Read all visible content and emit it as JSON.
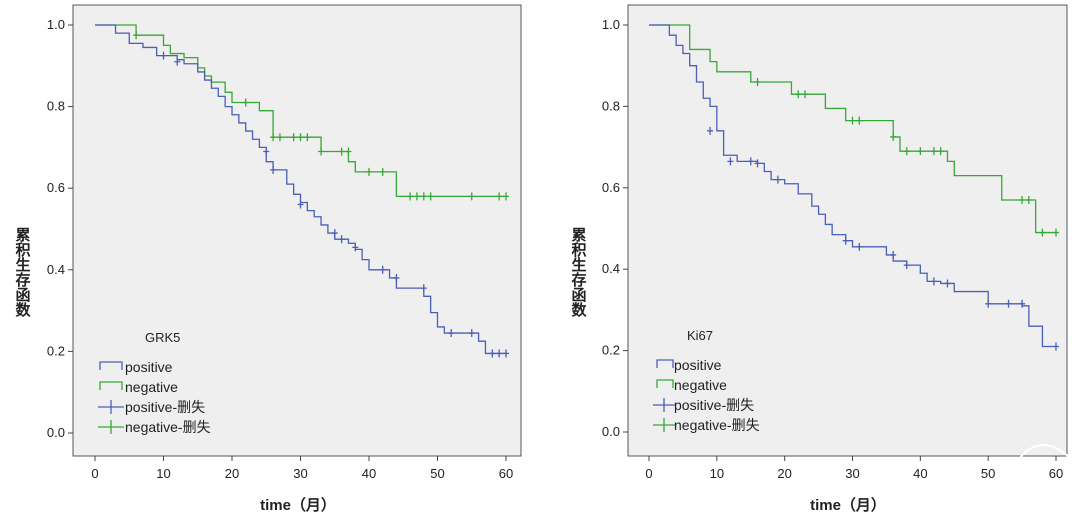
{
  "chart_data": [
    {
      "type": "line",
      "subtype": "kaplan-meier",
      "title": "",
      "xlabel": "time（月）",
      "ylabel": "累积生存函数",
      "xlim": [
        0,
        60
      ],
      "ylim": [
        0,
        1.0
      ],
      "xticks": [
        "0",
        "10",
        "20",
        "30",
        "40",
        "50",
        "60"
      ],
      "yticks": [
        "0.0",
        "0.2",
        "0.4",
        "0.6",
        "0.8",
        "1.0"
      ],
      "grid": false,
      "legend": {
        "title": "GRK5",
        "placement": "bottom-left",
        "entries": [
          "positive",
          "negative",
          "positive-删失",
          "negative-删失"
        ]
      },
      "series": [
        {
          "name": "positive",
          "color": "#4a5fb8",
          "steps": [
            [
              0,
              1.0
            ],
            [
              3,
              0.98
            ],
            [
              5,
              0.955
            ],
            [
              7,
              0.945
            ],
            [
              9,
              0.925
            ],
            [
              12,
              0.915
            ],
            [
              13,
              0.905
            ],
            [
              15,
              0.885
            ],
            [
              16,
              0.865
            ],
            [
              17,
              0.845
            ],
            [
              18,
              0.825
            ],
            [
              19,
              0.8
            ],
            [
              20,
              0.78
            ],
            [
              21,
              0.76
            ],
            [
              22,
              0.74
            ],
            [
              23,
              0.72
            ],
            [
              24,
              0.7
            ],
            [
              25,
              0.665
            ],
            [
              26,
              0.645
            ],
            [
              28,
              0.61
            ],
            [
              29,
              0.585
            ],
            [
              30,
              0.565
            ],
            [
              31,
              0.545
            ],
            [
              32,
              0.53
            ],
            [
              33,
              0.51
            ],
            [
              34,
              0.49
            ],
            [
              35,
              0.475
            ],
            [
              37,
              0.465
            ],
            [
              38,
              0.45
            ],
            [
              39,
              0.425
            ],
            [
              40,
              0.4
            ],
            [
              43,
              0.38
            ],
            [
              44,
              0.355
            ],
            [
              48,
              0.335
            ],
            [
              49,
              0.295
            ],
            [
              50,
              0.26
            ],
            [
              51,
              0.245
            ],
            [
              56,
              0.225
            ],
            [
              57,
              0.195
            ],
            [
              60,
              0.195
            ]
          ],
          "censored": [
            [
              10,
              0.925
            ],
            [
              12,
              0.91
            ],
            [
              25,
              0.69
            ],
            [
              26,
              0.645
            ],
            [
              30,
              0.56
            ],
            [
              35,
              0.49
            ],
            [
              36,
              0.475
            ],
            [
              38,
              0.455
            ],
            [
              42,
              0.4
            ],
            [
              44,
              0.38
            ],
            [
              48,
              0.355
            ],
            [
              52,
              0.245
            ],
            [
              55,
              0.245
            ],
            [
              58,
              0.195
            ],
            [
              59,
              0.195
            ],
            [
              60,
              0.195
            ]
          ]
        },
        {
          "name": "negative",
          "color": "#36a836",
          "steps": [
            [
              0,
              1.0
            ],
            [
              6,
              0.975
            ],
            [
              10,
              0.95
            ],
            [
              11,
              0.93
            ],
            [
              13,
              0.92
            ],
            [
              15,
              0.895
            ],
            [
              16,
              0.875
            ],
            [
              17,
              0.86
            ],
            [
              19,
              0.835
            ],
            [
              20,
              0.81
            ],
            [
              24,
              0.79
            ],
            [
              26,
              0.725
            ],
            [
              33,
              0.69
            ],
            [
              37,
              0.665
            ],
            [
              38,
              0.64
            ],
            [
              44,
              0.58
            ],
            [
              60,
              0.58
            ]
          ],
          "censored": [
            [
              6,
              0.975
            ],
            [
              22,
              0.81
            ],
            [
              26,
              0.725
            ],
            [
              27,
              0.725
            ],
            [
              29,
              0.725
            ],
            [
              30,
              0.725
            ],
            [
              31,
              0.725
            ],
            [
              33,
              0.69
            ],
            [
              36,
              0.69
            ],
            [
              37,
              0.69
            ],
            [
              40,
              0.64
            ],
            [
              42,
              0.64
            ],
            [
              46,
              0.58
            ],
            [
              47,
              0.58
            ],
            [
              48,
              0.58
            ],
            [
              49,
              0.58
            ],
            [
              55,
              0.58
            ],
            [
              59,
              0.58
            ],
            [
              60,
              0.58
            ]
          ]
        }
      ]
    },
    {
      "type": "line",
      "subtype": "kaplan-meier",
      "title": "",
      "xlabel": "time（月）",
      "ylabel": "累积生存函数",
      "xlim": [
        0,
        60
      ],
      "ylim": [
        0,
        1.0
      ],
      "xticks": [
        "0",
        "10",
        "20",
        "30",
        "40",
        "50",
        "60"
      ],
      "yticks": [
        "0.0",
        "0.2",
        "0.4",
        "0.6",
        "0.8",
        "1.0"
      ],
      "grid": false,
      "legend": {
        "title": "Ki67",
        "placement": "bottom-left",
        "entries": [
          "positive",
          "negative",
          "positive-删失",
          "negative-删失"
        ]
      },
      "series": [
        {
          "name": "positive",
          "color": "#4a5fb8",
          "steps": [
            [
              0,
              1.0
            ],
            [
              3,
              0.975
            ],
            [
              4,
              0.95
            ],
            [
              5,
              0.93
            ],
            [
              6,
              0.9
            ],
            [
              7,
              0.86
            ],
            [
              8,
              0.82
            ],
            [
              9,
              0.8
            ],
            [
              10,
              0.74
            ],
            [
              11,
              0.68
            ],
            [
              13,
              0.665
            ],
            [
              16,
              0.66
            ],
            [
              17,
              0.64
            ],
            [
              18,
              0.62
            ],
            [
              20,
              0.61
            ],
            [
              22,
              0.585
            ],
            [
              24,
              0.555
            ],
            [
              25,
              0.535
            ],
            [
              26,
              0.51
            ],
            [
              27,
              0.485
            ],
            [
              29,
              0.47
            ],
            [
              30,
              0.455
            ],
            [
              35,
              0.435
            ],
            [
              36,
              0.42
            ],
            [
              38,
              0.41
            ],
            [
              40,
              0.39
            ],
            [
              41,
              0.37
            ],
            [
              43,
              0.365
            ],
            [
              45,
              0.345
            ],
            [
              50,
              0.315
            ],
            [
              55,
              0.31
            ],
            [
              56,
              0.26
            ],
            [
              58,
              0.21
            ],
            [
              60,
              0.21
            ]
          ],
          "censored": [
            [
              9,
              0.74
            ],
            [
              12,
              0.665
            ],
            [
              15,
              0.665
            ],
            [
              16,
              0.66
            ],
            [
              19,
              0.62
            ],
            [
              29,
              0.47
            ],
            [
              31,
              0.455
            ],
            [
              36,
              0.435
            ],
            [
              38,
              0.41
            ],
            [
              42,
              0.37
            ],
            [
              44,
              0.365
            ],
            [
              50,
              0.315
            ],
            [
              53,
              0.315
            ],
            [
              55,
              0.315
            ],
            [
              60,
              0.21
            ]
          ]
        },
        {
          "name": "negative",
          "color": "#36a836",
          "steps": [
            [
              0,
              1.0
            ],
            [
              6,
              0.94
            ],
            [
              9,
              0.91
            ],
            [
              10,
              0.885
            ],
            [
              15,
              0.86
            ],
            [
              21,
              0.83
            ],
            [
              26,
              0.795
            ],
            [
              29,
              0.765
            ],
            [
              36,
              0.725
            ],
            [
              37,
              0.69
            ],
            [
              44,
              0.665
            ],
            [
              45,
              0.63
            ],
            [
              52,
              0.57
            ],
            [
              57,
              0.49
            ],
            [
              60,
              0.49
            ]
          ],
          "censored": [
            [
              16,
              0.86
            ],
            [
              22,
              0.83
            ],
            [
              23,
              0.83
            ],
            [
              30,
              0.765
            ],
            [
              31,
              0.765
            ],
            [
              36,
              0.725
            ],
            [
              38,
              0.69
            ],
            [
              40,
              0.69
            ],
            [
              42,
              0.69
            ],
            [
              43,
              0.69
            ],
            [
              55,
              0.57
            ],
            [
              56,
              0.57
            ],
            [
              58,
              0.49
            ],
            [
              60,
              0.49
            ]
          ]
        }
      ]
    }
  ]
}
